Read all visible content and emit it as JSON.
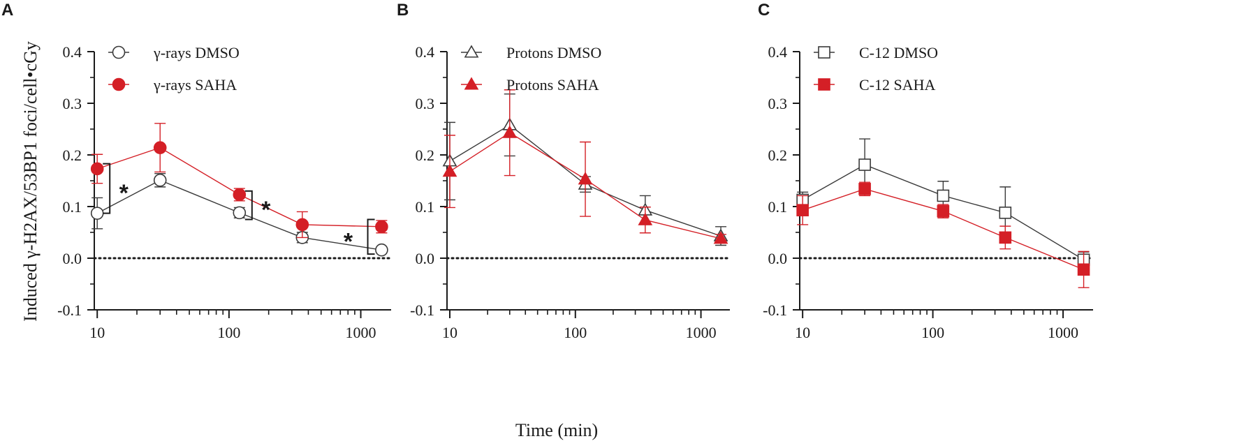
{
  "figure": {
    "ylabel": "Induced γ-H2AX/53BP1 foci/cell•cGy",
    "xlabel": "Time (min)"
  },
  "chart_data": [
    {
      "type": "line",
      "panel": "A",
      "xscale": "log",
      "xlim": [
        9.5,
        1700
      ],
      "ylim": [
        -0.1,
        0.4
      ],
      "x_ticks": [
        "10",
        "100",
        "1000"
      ],
      "y_ticks": [
        "0.4",
        "0.3",
        "0.2",
        "0.1",
        "0.0",
        "-0.1"
      ],
      "baseline": 0.0,
      "series": [
        {
          "name": "γ-rays DMSO",
          "color": "#3a3a3a",
          "marker": "circle",
          "filled": false,
          "x": [
            10,
            30,
            120,
            360,
            1440
          ],
          "y": [
            0.087,
            0.151,
            0.088,
            0.04,
            0.016
          ],
          "err": [
            0.03,
            0.013,
            0.01,
            0.01,
            0.004
          ]
        },
        {
          "name": "γ-rays SAHA",
          "color": "#d41f26",
          "marker": "circle",
          "filled": true,
          "x": [
            10,
            30,
            120,
            360,
            1440
          ],
          "y": [
            0.173,
            0.214,
            0.123,
            0.065,
            0.061
          ],
          "err": [
            0.028,
            0.047,
            0.012,
            0.025,
            0.012
          ]
        }
      ],
      "annotations": [
        {
          "text": "*",
          "x": 10,
          "y_low": 0.087,
          "y_high": 0.183
        },
        {
          "text": "*",
          "x": 120,
          "y_low": 0.075,
          "y_high": 0.13
        },
        {
          "text": "*",
          "x": 1000,
          "y_low": 0.008,
          "y_high": 0.075
        }
      ]
    },
    {
      "type": "line",
      "panel": "B",
      "xscale": "log",
      "xlim": [
        9.5,
        1700
      ],
      "ylim": [
        -0.1,
        0.4
      ],
      "x_ticks": [
        "10",
        "100",
        "1000"
      ],
      "y_ticks": [
        "0.4",
        "0.3",
        "0.2",
        "0.1",
        "0.0",
        "-0.1"
      ],
      "baseline": 0.0,
      "series": [
        {
          "name": "Protons DMSO",
          "color": "#3a3a3a",
          "marker": "triangle",
          "filled": false,
          "x": [
            10,
            30,
            120,
            360,
            1440
          ],
          "y": [
            0.188,
            0.258,
            0.143,
            0.093,
            0.043
          ],
          "err": [
            0.075,
            0.06,
            0.015,
            0.028,
            0.018
          ]
        },
        {
          "name": "Protons SAHA",
          "color": "#d41f26",
          "marker": "triangle",
          "filled": true,
          "x": [
            10,
            30,
            120,
            360,
            1440
          ],
          "y": [
            0.168,
            0.243,
            0.153,
            0.074,
            0.038
          ],
          "err": [
            0.07,
            0.083,
            0.072,
            0.025,
            0.008
          ]
        }
      ],
      "annotations": []
    },
    {
      "type": "line",
      "panel": "C",
      "xscale": "log",
      "xlim": [
        9.5,
        1700
      ],
      "ylim": [
        -0.1,
        0.4
      ],
      "x_ticks": [
        "10",
        "100",
        "1000"
      ],
      "y_ticks": [
        "0.4",
        "0.3",
        "0.2",
        "0.1",
        "0.0",
        "-0.1"
      ],
      "baseline": 0.0,
      "series": [
        {
          "name": "C-12  DMSO",
          "color": "#3a3a3a",
          "marker": "square",
          "filled": false,
          "x": [
            10,
            30,
            120,
            360,
            1440
          ],
          "y": [
            0.113,
            0.181,
            0.121,
            0.088,
            -0.003
          ],
          "err": [
            0.015,
            0.05,
            0.028,
            0.05,
            0.015
          ]
        },
        {
          "name": "C-12  SAHA",
          "color": "#d41f26",
          "marker": "square",
          "filled": true,
          "x": [
            10,
            30,
            120,
            360,
            1440
          ],
          "y": [
            0.093,
            0.134,
            0.091,
            0.04,
            -0.022
          ],
          "err": [
            0.028,
            0.013,
            0.013,
            0.022,
            0.035
          ]
        }
      ],
      "annotations": []
    }
  ]
}
